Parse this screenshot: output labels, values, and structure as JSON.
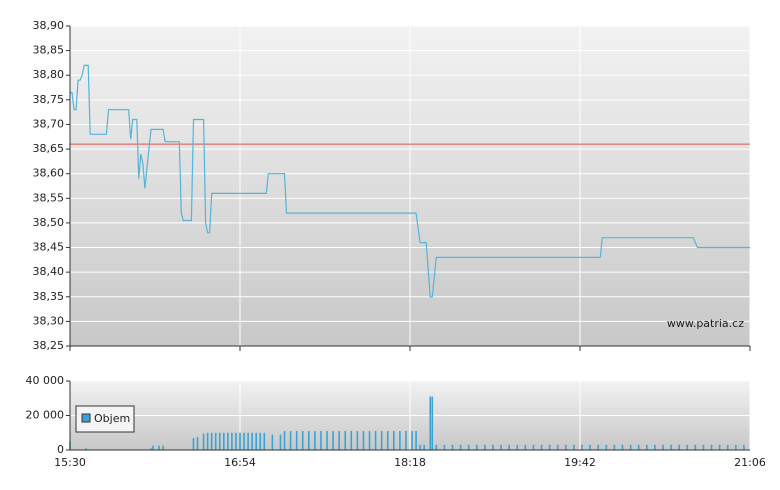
{
  "chart_data": [
    {
      "type": "line",
      "x": [
        930,
        931,
        932,
        933,
        934,
        935,
        936,
        937,
        939,
        940,
        948,
        949,
        959,
        960,
        961,
        963,
        964,
        965,
        966,
        967,
        969,
        970,
        976,
        977,
        984,
        985,
        986,
        990,
        991,
        996,
        997,
        998,
        999,
        1000,
        1027,
        1028,
        1036,
        1037,
        1101,
        1103,
        1106,
        1108,
        1109,
        1111,
        1192,
        1193,
        1238,
        1240,
        1266
      ],
      "values": [
        38.765,
        38.765,
        38.73,
        38.73,
        38.79,
        38.79,
        38.8,
        38.82,
        38.82,
        38.68,
        38.68,
        38.73,
        38.73,
        38.67,
        38.71,
        38.71,
        38.59,
        38.64,
        38.62,
        38.57,
        38.65,
        38.69,
        38.69,
        38.665,
        38.665,
        38.52,
        38.505,
        38.505,
        38.71,
        38.71,
        38.5,
        38.48,
        38.48,
        38.56,
        38.56,
        38.6,
        38.6,
        38.52,
        38.52,
        38.46,
        38.46,
        38.35,
        38.35,
        38.43,
        38.43,
        38.47,
        38.47,
        38.45,
        38.45
      ],
      "color": "#55b4d8",
      "reference_line": {
        "value": 38.66,
        "color": "#d9534f"
      },
      "watermark": "www.patria.cz",
      "xlim": [
        930,
        1266
      ],
      "ylim": [
        38.25,
        38.9
      ],
      "yticks": [
        {
          "value": 38.25,
          "label": "38,25"
        },
        {
          "value": 38.3,
          "label": "38,30"
        },
        {
          "value": 38.35,
          "label": "38,35"
        },
        {
          "value": 38.4,
          "label": "38,40"
        },
        {
          "value": 38.45,
          "label": "38,45"
        },
        {
          "value": 38.5,
          "label": "38,50"
        },
        {
          "value": 38.55,
          "label": "38,55"
        },
        {
          "value": 38.6,
          "label": "38,60"
        },
        {
          "value": 38.65,
          "label": "38,65"
        },
        {
          "value": 38.7,
          "label": "38,70"
        },
        {
          "value": 38.75,
          "label": "38,75"
        },
        {
          "value": 38.8,
          "label": "38,80"
        },
        {
          "value": 38.85,
          "label": "38,85"
        },
        {
          "value": 38.9,
          "label": "38,90"
        }
      ]
    },
    {
      "type": "bar",
      "x": [
        930,
        938,
        970,
        971,
        974,
        976,
        991,
        993,
        996,
        998,
        1000,
        1002,
        1004,
        1006,
        1008,
        1010,
        1012,
        1014,
        1016,
        1018,
        1020,
        1022,
        1024,
        1026,
        1030,
        1034,
        1036,
        1039,
        1042,
        1045,
        1048,
        1051,
        1054,
        1057,
        1060,
        1063,
        1066,
        1069,
        1072,
        1075,
        1078,
        1081,
        1084,
        1087,
        1090,
        1093,
        1096,
        1099,
        1101,
        1103,
        1105,
        1108,
        1109,
        1111,
        1115,
        1119,
        1123,
        1127,
        1131,
        1135,
        1139,
        1143,
        1147,
        1151,
        1155,
        1159,
        1163,
        1167,
        1171,
        1175,
        1179,
        1183,
        1187,
        1191,
        1195,
        1199,
        1203,
        1207,
        1211,
        1215,
        1219,
        1223,
        1227,
        1231,
        1235,
        1239,
        1243,
        1247,
        1251,
        1255,
        1259,
        1263
      ],
      "series": [
        {
          "name": "Objem",
          "color": "#3aa3d4",
          "values": [
            5000,
            1000,
            1000,
            2500,
            2500,
            2500,
            7000,
            7500,
            9500,
            10000,
            10000,
            10000,
            10000,
            10000,
            10000,
            10000,
            10000,
            10000,
            10000,
            10000,
            10000,
            10000,
            10000,
            10000,
            9000,
            9000,
            11000,
            11000,
            11000,
            11000,
            11000,
            11000,
            11000,
            11000,
            11000,
            11000,
            11000,
            11000,
            11000,
            11000,
            11000,
            11000,
            11000,
            11000,
            11000,
            11000,
            11000,
            11000,
            11000,
            3000,
            3000,
            31000,
            31000,
            3000,
            3000,
            3000,
            3000,
            3000,
            3000,
            3000,
            3000,
            3000,
            3000,
            3000,
            3000,
            3000,
            3000,
            3000,
            3000,
            3000,
            3000,
            3000,
            3000,
            3000,
            3000,
            3000,
            3000,
            3000,
            3000,
            3000,
            3000,
            3000,
            3000,
            3000,
            3000,
            3000,
            3000,
            3000,
            3000,
            3000,
            3000,
            3000
          ]
        }
      ],
      "legend": "upper left",
      "xlim": [
        930,
        1266
      ],
      "xticks": [
        {
          "value": 930,
          "label": "15:30"
        },
        {
          "value": 1014,
          "label": "16:54"
        },
        {
          "value": 1098,
          "label": "18:18"
        },
        {
          "value": 1182,
          "label": "19:42"
        },
        {
          "value": 1266,
          "label": "21:06"
        }
      ],
      "ylim": [
        0,
        40000
      ],
      "yticks": [
        {
          "value": 0,
          "label": "0"
        },
        {
          "value": 20000,
          "label": "20 000"
        },
        {
          "value": 40000,
          "label": "40 000"
        }
      ]
    }
  ]
}
